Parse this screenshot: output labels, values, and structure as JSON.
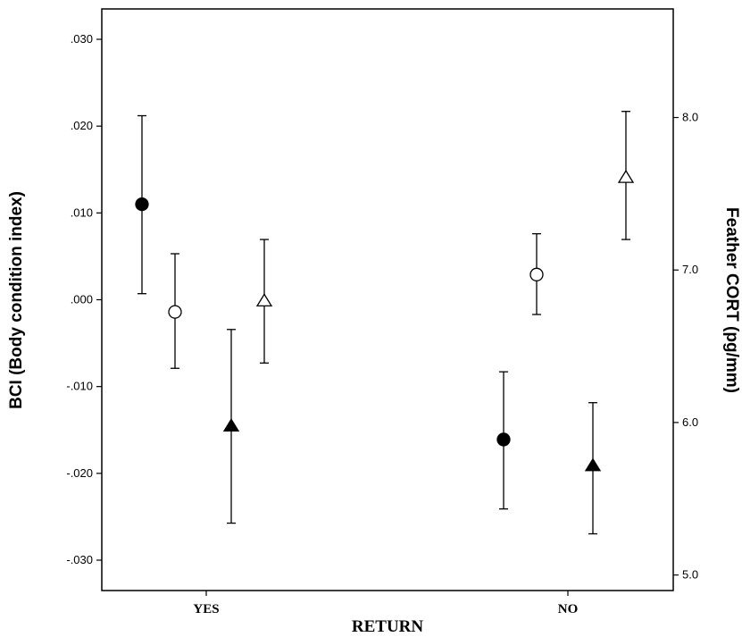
{
  "chart_data": {
    "type": "scatter",
    "xlabel": "RETURN",
    "categories": [
      "YES",
      "NO"
    ],
    "left_axis": {
      "label": "BCI (Body condition index)",
      "ylim": [
        -0.0335,
        0.0335
      ],
      "ticks": [
        ".030",
        ".020",
        ".010",
        ".000",
        "-.010",
        "-.020",
        "-.030"
      ],
      "tick_values": [
        0.03,
        0.02,
        0.01,
        0.0,
        -0.01,
        -0.02,
        -0.03
      ]
    },
    "right_axis": {
      "label": "Feather CORT (pg/mm)",
      "ylim": [
        4.898,
        8.712
      ],
      "ticks": [
        "8.0",
        "7.0",
        "6.0",
        "5.0"
      ],
      "tick_values": [
        8.0,
        7.0,
        6.0,
        5.0
      ]
    },
    "grid": false,
    "legend": "none",
    "series": [
      {
        "marker": "filled-circle",
        "axis": "left",
        "points": [
          {
            "category": "YES",
            "value": 0.011,
            "err_low": 0.0007,
            "err_high": 0.0212
          },
          {
            "category": "NO",
            "value": -0.0161,
            "err_low": -0.0241,
            "err_high": -0.0083
          }
        ]
      },
      {
        "marker": "open-circle",
        "axis": "left",
        "points": [
          {
            "category": "YES",
            "value": -0.0014,
            "err_low": -0.0079,
            "err_high": 0.0053
          },
          {
            "category": "NO",
            "value": 0.0029,
            "err_low": -0.0017,
            "err_high": 0.0076
          }
        ]
      },
      {
        "marker": "filled-triangle",
        "axis": "right",
        "points": [
          {
            "category": "YES",
            "value": 5.98,
            "err_low": 5.34,
            "err_high": 6.61
          },
          {
            "category": "NO",
            "value": 5.72,
            "err_low": 5.27,
            "err_high": 6.13
          }
        ]
      },
      {
        "marker": "open-triangle",
        "axis": "right",
        "points": [
          {
            "category": "YES",
            "value": 6.8,
            "err_low": 6.39,
            "err_high": 7.2
          },
          {
            "category": "NO",
            "value": 7.61,
            "err_low": 7.2,
            "err_high": 8.04
          }
        ]
      }
    ]
  }
}
